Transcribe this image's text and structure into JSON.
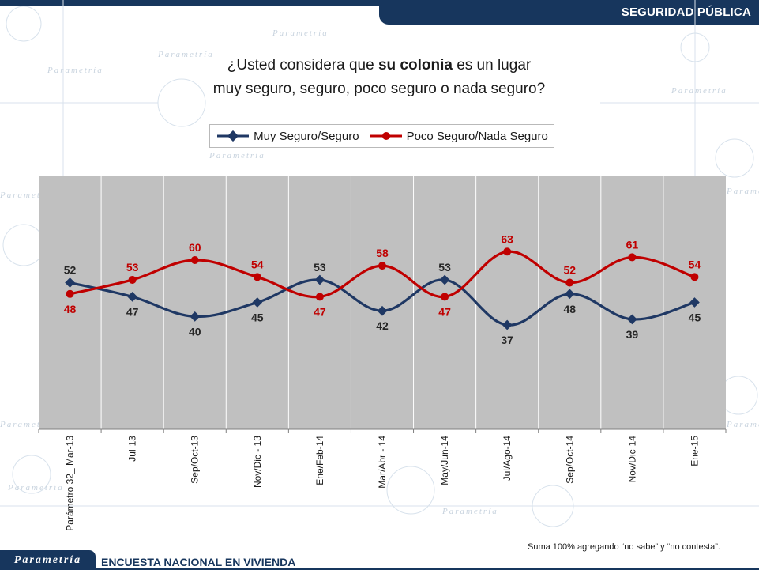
{
  "header": {
    "section": "SEGURIDAD PÚBLICA"
  },
  "question": {
    "line1_before": "¿Usted considera que ",
    "line1_bold": "su colonia",
    "line1_after": " es un lugar",
    "line2": "muy seguro, seguro, poco seguro o nada seguro?"
  },
  "background": {
    "watermark": "Parametría"
  },
  "chart_data": {
    "type": "line",
    "title": "",
    "xlabel": "",
    "ylabel": "",
    "ylim": [
      0,
      90
    ],
    "grid": true,
    "legend_position": "top",
    "categories": [
      "Parámetro 32_ Mar-13",
      "Jul-13",
      "Sep/Oct-13",
      "Nov/Dic - 13",
      "Ene/Feb-14",
      "Mar/Abr - 14",
      "May/Jun-14",
      "Jul/Ago-14",
      "Sep/Oct-14",
      "Nov/Dic-14",
      "Ene-15"
    ],
    "series": [
      {
        "name": "Muy Seguro/Seguro",
        "color": "#1f3864",
        "values": [
          52,
          47,
          40,
          45,
          53,
          42,
          53,
          37,
          48,
          39,
          45
        ]
      },
      {
        "name": "Poco Seguro/Nada Seguro",
        "color": "#c00000",
        "values": [
          48,
          53,
          60,
          54,
          47,
          58,
          47,
          63,
          52,
          61,
          54
        ]
      }
    ],
    "plot_background": "#c0c0c0"
  },
  "footnote": "Suma 100% agregando “no sabe” y “no contesta”.",
  "footer": {
    "logo": "Parametría",
    "title": "ENCUESTA NACIONAL  EN VIVIENDA"
  }
}
